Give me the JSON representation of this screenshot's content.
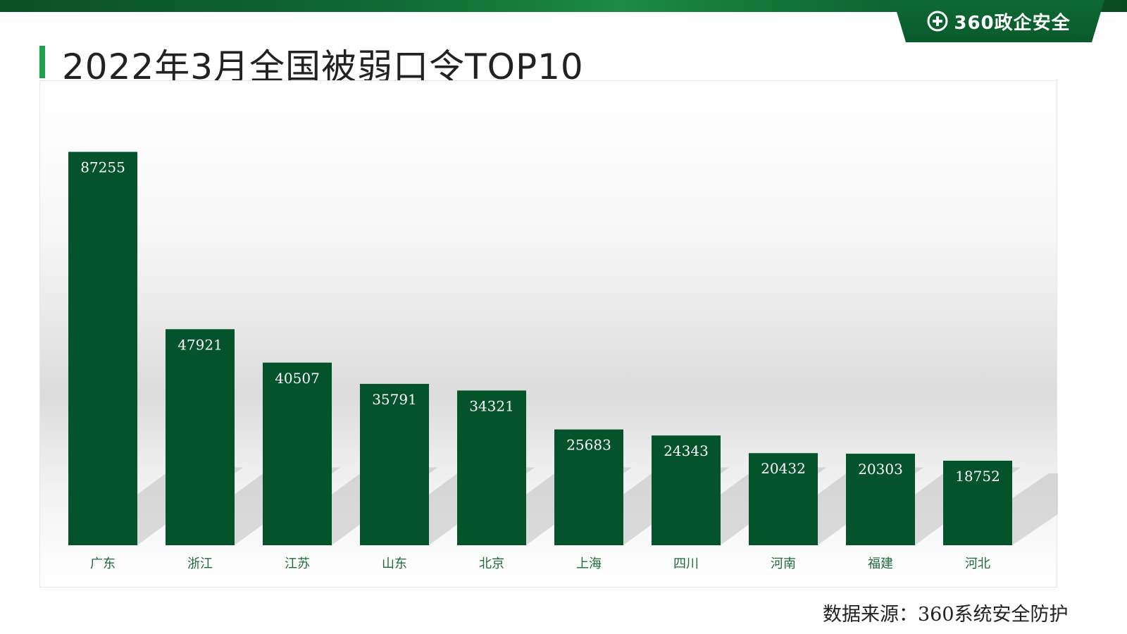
{
  "header": {
    "brand": "360政企安全",
    "icon": "plus-circle-icon",
    "accent_color": "#0b5a2c"
  },
  "page_title": "2022年3月全国被弱口令TOP10",
  "source": "数据来源：360系统安全防护",
  "chart_data": {
    "type": "bar",
    "title": "2022年3月全国被弱口令TOP10",
    "xlabel": "",
    "ylabel": "",
    "ylim": [
      0,
      100000
    ],
    "grid": false,
    "bar_color": "#05532a",
    "categories": [
      "广东",
      "浙江",
      "江苏",
      "山东",
      "北京",
      "上海",
      "四川",
      "河南",
      "福建",
      "河北"
    ],
    "values": [
      87255,
      47921,
      40507,
      35791,
      34321,
      25683,
      24343,
      20432,
      20303,
      18752
    ]
  }
}
